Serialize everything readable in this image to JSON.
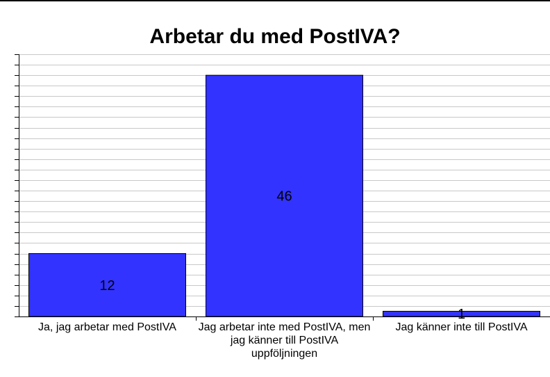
{
  "chart_data": {
    "type": "bar",
    "title": "Arbetar du med PostIVA?",
    "categories": [
      "Ja, jag arbetar med PostIVA",
      "Jag arbetar inte med PostIVA, men jag känner till PostIVA uppföljningen",
      "Jag känner inte till PostIVA"
    ],
    "series": [
      {
        "values": [
          12,
          46,
          1
        ]
      }
    ],
    "data_labels": [
      "12",
      "46",
      "1"
    ],
    "ylim": [
      0,
      50
    ],
    "grid": true,
    "legend": "none",
    "colors": {
      "bar": "#3333ff",
      "bar_stroke": "#000000",
      "grid": "#c8c8c8",
      "axis": "#000000"
    }
  }
}
